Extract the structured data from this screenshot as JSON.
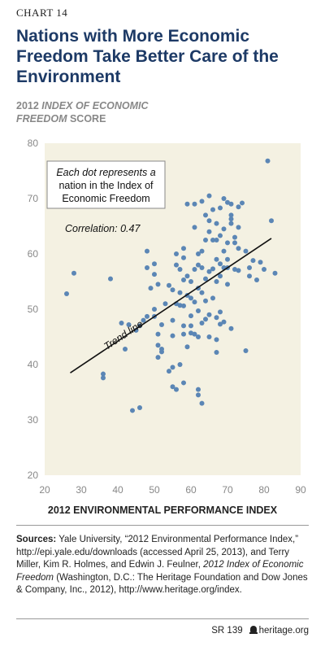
{
  "chart_label": "CHART 14",
  "title": "Nations with More Economic Freedom Take Better Care of the Environment",
  "ylabel_normal_1": "2012 ",
  "ylabel_italic": "INDEX OF ECONOMIC",
  "ylabel_italic_2": "FREEDOM",
  "ylabel_normal_2": " SCORE",
  "xlabel": "2012 ENVIRONMENTAL PERFORMANCE INDEX",
  "sources_label": "Sources:",
  "sources_text_1": " Yale University, “2012 Environmental Performance Index,” http://epi.yale.edu/downloads (accessed April 25, 2013), and Terry Miller, Kim R. Holmes, and Edwin J. Feulner, ",
  "sources_italic": "2012 Index of Economic Freedom",
  "sources_text_2": " (Washington, D.C.: The Heritage Foundation and Dow Jones & Company, Inc., 2012), http://www.heritage.org/index.",
  "footer_report": "SR 139",
  "footer_site": "heritage.org",
  "chart_data": {
    "type": "scatter",
    "xlim": [
      20,
      90
    ],
    "ylim": [
      20,
      80
    ],
    "xticks": [
      20,
      30,
      40,
      50,
      60,
      70,
      80,
      90
    ],
    "yticks": [
      20,
      30,
      40,
      50,
      60,
      70,
      80
    ],
    "grid": false,
    "annotation_box": [
      "Each dot represents a",
      "nation in the Index of",
      "Economic Freedom"
    ],
    "annotation_box_italic": [
      "Each dot represents a",
      "nation in the",
      ""
    ],
    "correlation": "Correlation: 0.47",
    "trend_label": "Trend line",
    "trend": {
      "x1": 27,
      "y1": 38.5,
      "x2": 82,
      "y2": 62.8
    },
    "colors": {
      "dot": "#5b86b5",
      "panel": "#f4f1e2",
      "line": "#111111"
    },
    "points": [
      [
        26,
        52.8
      ],
      [
        28,
        56.5
      ],
      [
        36,
        38.3
      ],
      [
        36,
        37.6
      ],
      [
        38,
        55.5
      ],
      [
        41,
        47.5
      ],
      [
        42,
        42.8
      ],
      [
        43,
        47.2
      ],
      [
        44,
        31.7
      ],
      [
        45,
        46.2
      ],
      [
        46,
        32.2
      ],
      [
        46,
        47.0
      ],
      [
        47,
        48.0
      ],
      [
        48,
        60.5
      ],
      [
        48,
        48.7
      ],
      [
        48,
        57.5
      ],
      [
        49,
        53.8
      ],
      [
        50,
        58.2
      ],
      [
        50,
        56.3
      ],
      [
        50,
        50.0
      ],
      [
        50,
        48.7
      ],
      [
        51,
        54.5
      ],
      [
        51,
        45.5
      ],
      [
        51,
        43.5
      ],
      [
        51,
        41.3
      ],
      [
        52,
        42.8
      ],
      [
        52,
        42.3
      ],
      [
        52,
        47.2
      ],
      [
        53,
        51.0
      ],
      [
        54,
        38.8
      ],
      [
        54,
        54.3
      ],
      [
        55,
        36.0
      ],
      [
        55,
        39.5
      ],
      [
        55,
        53.5
      ],
      [
        55,
        48.0
      ],
      [
        55,
        45.2
      ],
      [
        56,
        35.5
      ],
      [
        56,
        51.0
      ],
      [
        56,
        60.0
      ],
      [
        56,
        58.0
      ],
      [
        57,
        40.0
      ],
      [
        57,
        50.7
      ],
      [
        57,
        57.2
      ],
      [
        57,
        53.0
      ],
      [
        58,
        36.7
      ],
      [
        58,
        45.5
      ],
      [
        58,
        47.0
      ],
      [
        58,
        55.3
      ],
      [
        58,
        50.6
      ],
      [
        58,
        61.0
      ],
      [
        58,
        59.3
      ],
      [
        59,
        43.2
      ],
      [
        59,
        52.5
      ],
      [
        59,
        56.0
      ],
      [
        59,
        69.0
      ],
      [
        60,
        47.0
      ],
      [
        60,
        45.7
      ],
      [
        60,
        52.0
      ],
      [
        60,
        48.8
      ],
      [
        60,
        55.0
      ],
      [
        61,
        51.3
      ],
      [
        61,
        45.5
      ],
      [
        61,
        57.2
      ],
      [
        61,
        64.8
      ],
      [
        61,
        69.0
      ],
      [
        62,
        35.5
      ],
      [
        62,
        34.5
      ],
      [
        62,
        45.0
      ],
      [
        62,
        49.7
      ],
      [
        62,
        53.8
      ],
      [
        62,
        58.0
      ],
      [
        62,
        60.0
      ],
      [
        63,
        33.0
      ],
      [
        63,
        47.5
      ],
      [
        63,
        53.0
      ],
      [
        63,
        57.5
      ],
      [
        63,
        69.5
      ],
      [
        63,
        60.5
      ],
      [
        64,
        48.2
      ],
      [
        64,
        51.5
      ],
      [
        64,
        55.5
      ],
      [
        64,
        62.5
      ],
      [
        64,
        67.0
      ],
      [
        65,
        70.5
      ],
      [
        65,
        66.0
      ],
      [
        65,
        64.0
      ],
      [
        65,
        49.0
      ],
      [
        65,
        45.0
      ],
      [
        65,
        56.8
      ],
      [
        66,
        52.0
      ],
      [
        66,
        57.3
      ],
      [
        66,
        62.5
      ],
      [
        66,
        68.0
      ],
      [
        67,
        55.0
      ],
      [
        67,
        59.0
      ],
      [
        67,
        62.5
      ],
      [
        67,
        65.5
      ],
      [
        67,
        48.5
      ],
      [
        67,
        44.5
      ],
      [
        67,
        42.2
      ],
      [
        68,
        63.3
      ],
      [
        68,
        68.3
      ],
      [
        68,
        58.2
      ],
      [
        68,
        47.3
      ],
      [
        68,
        49.5
      ],
      [
        68,
        56.0
      ],
      [
        69,
        70.0
      ],
      [
        69,
        64.5
      ],
      [
        69,
        60.5
      ],
      [
        69,
        57.5
      ],
      [
        69,
        47.7
      ],
      [
        70,
        69.3
      ],
      [
        70,
        62.0
      ],
      [
        70,
        59.0
      ],
      [
        70,
        57.5
      ],
      [
        70,
        54.5
      ],
      [
        71,
        67.0
      ],
      [
        71,
        65.5
      ],
      [
        71,
        66.3
      ],
      [
        71,
        69.0
      ],
      [
        71,
        46.5
      ],
      [
        72,
        63.0
      ],
      [
        72,
        57.2
      ],
      [
        72,
        62.0
      ],
      [
        73,
        57.0
      ],
      [
        73,
        64.8
      ],
      [
        73,
        61.0
      ],
      [
        73,
        68.5
      ],
      [
        74,
        69.2
      ],
      [
        75,
        42.5
      ],
      [
        75,
        60.5
      ],
      [
        76,
        57.5
      ],
      [
        76,
        56.0
      ],
      [
        77,
        58.8
      ],
      [
        78,
        55.3
      ],
      [
        79,
        58.5
      ],
      [
        80,
        57.2
      ],
      [
        81,
        76.8
      ],
      [
        82,
        66.0
      ],
      [
        83,
        56.5
      ]
    ]
  }
}
